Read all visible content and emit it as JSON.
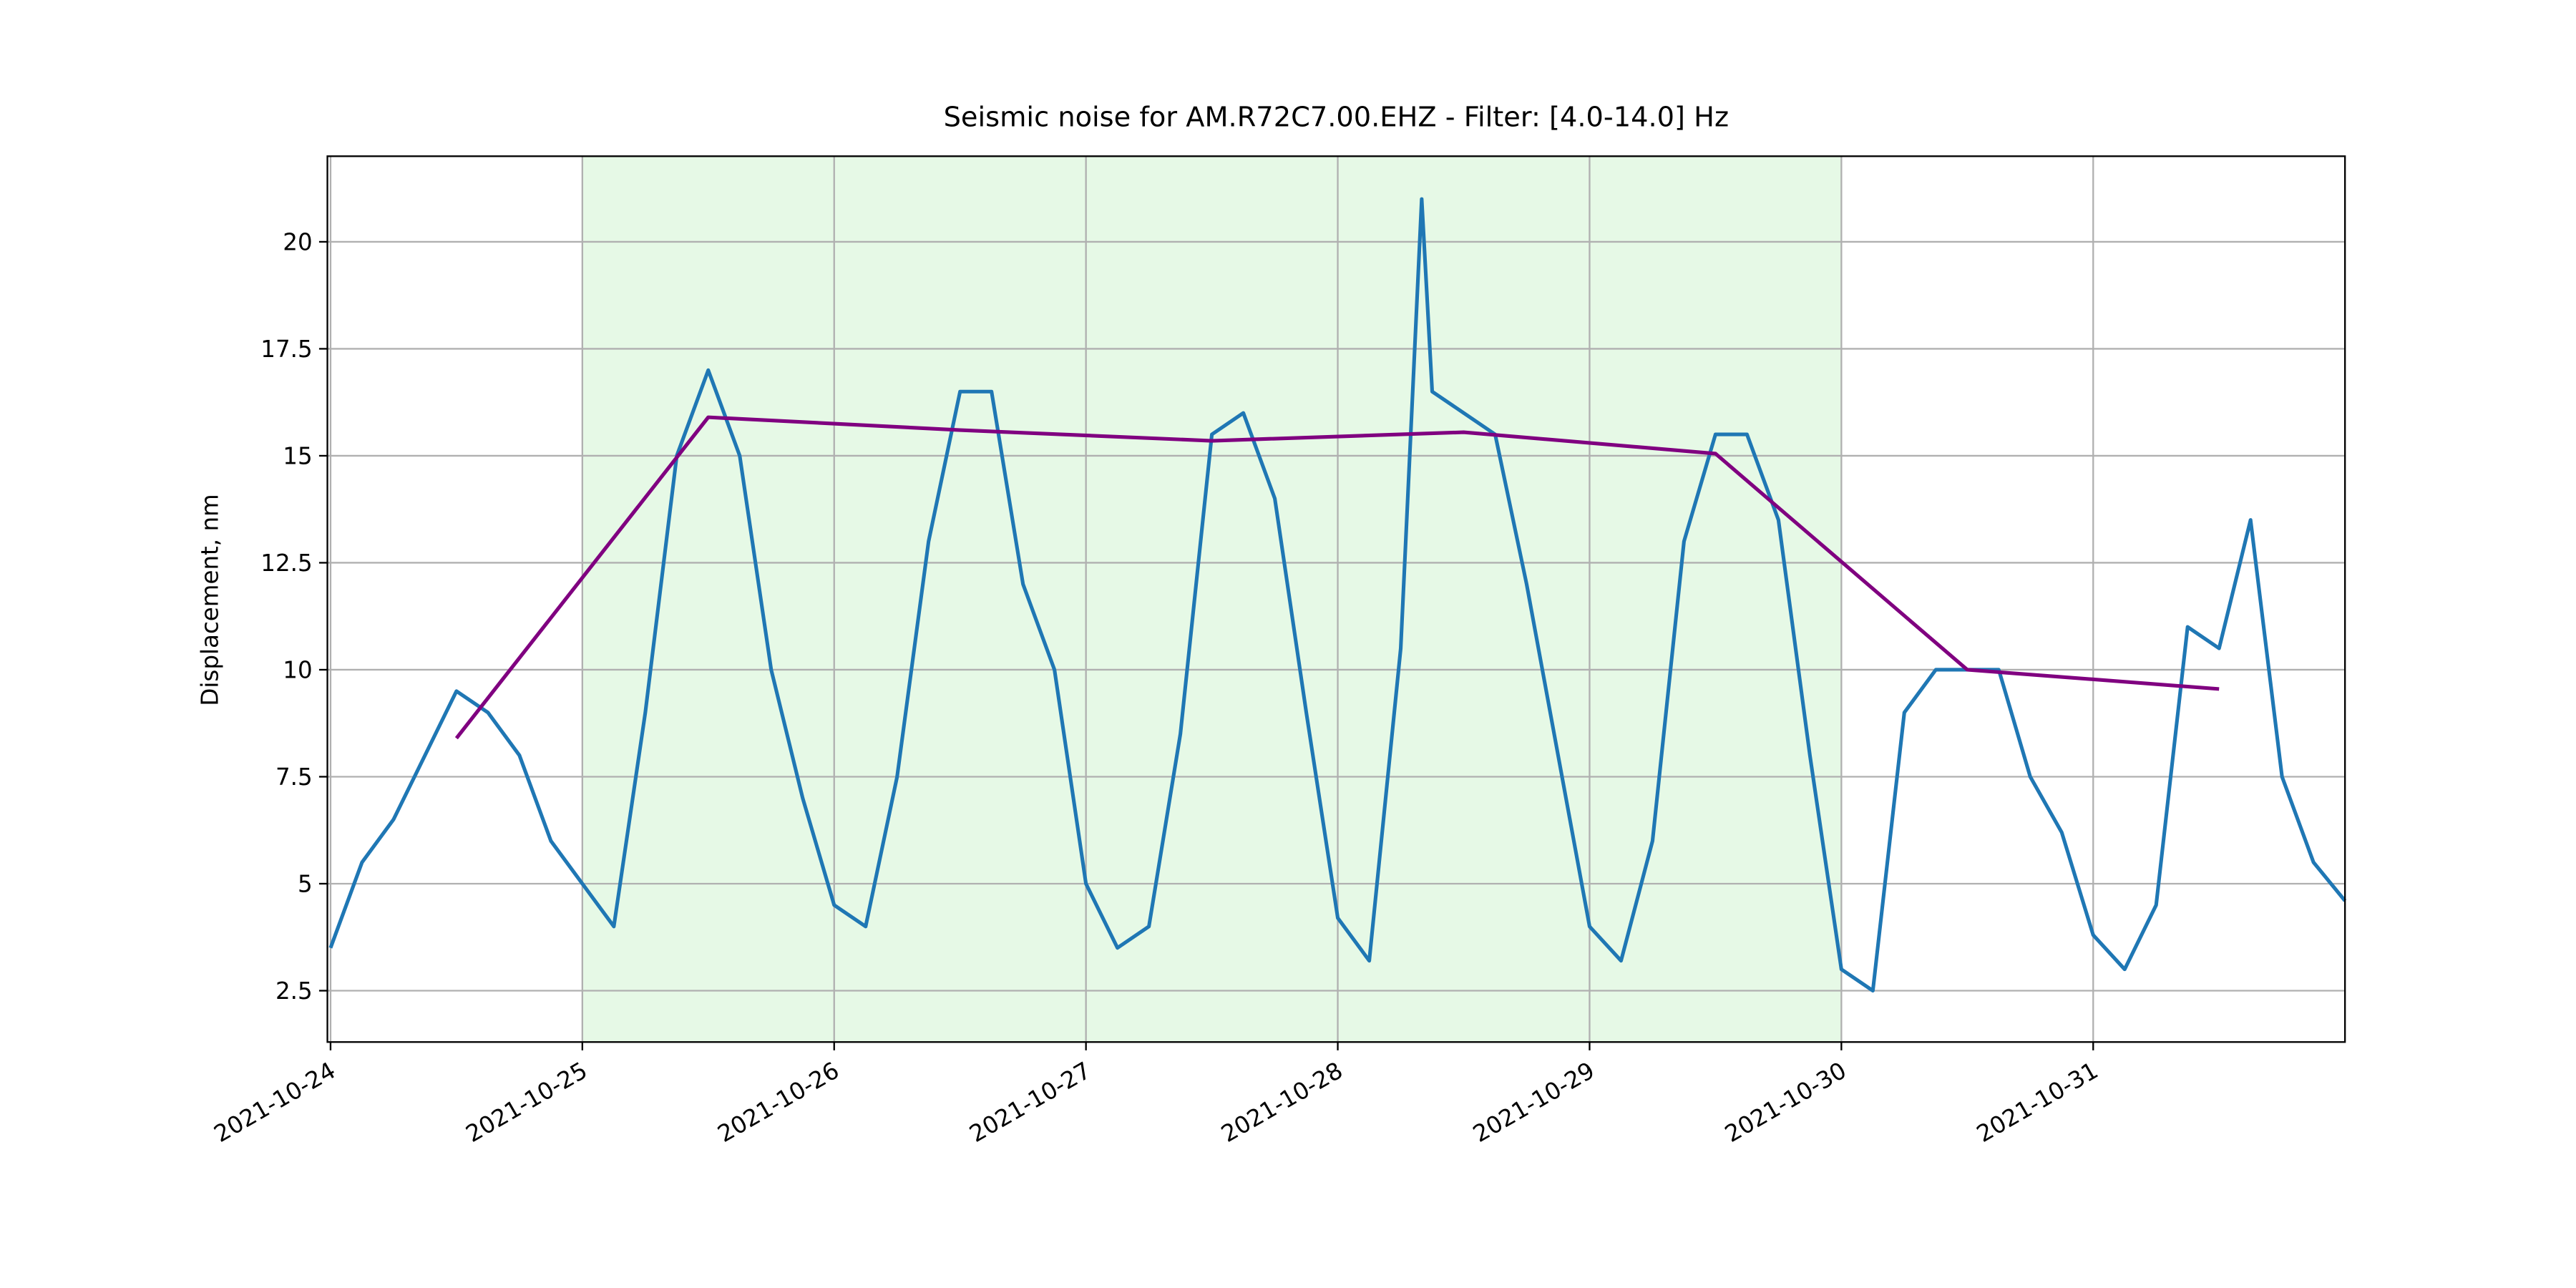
{
  "chart_data": {
    "type": "line",
    "title": "Seismic noise for AM.R72C7.00.EHZ - Filter: [4.0-14.0] Hz",
    "ylabel": "Displacement, nm",
    "xlim": [
      "2021-10-23 23:42",
      "2021-11-01 00:00"
    ],
    "xticks": [
      "2021-10-24",
      "2021-10-25",
      "2021-10-26",
      "2021-10-27",
      "2021-10-28",
      "2021-10-29",
      "2021-10-30",
      "2021-10-31"
    ],
    "ylim": [
      1.3,
      22
    ],
    "yticks": [
      2.5,
      5,
      7.5,
      10,
      12.5,
      15,
      17.5,
      20
    ],
    "grid": true,
    "shaded_span": {
      "x": [
        "2021-10-25",
        "2021-10-30"
      ],
      "color": "#e6f9e6"
    },
    "series": [
      {
        "color": "#1f77b4",
        "x": [
          "2021-10-24 00:00",
          "2021-10-24 03:00",
          "2021-10-24 06:00",
          "2021-10-24 09:00",
          "2021-10-24 12:00",
          "2021-10-24 15:00",
          "2021-10-24 18:00",
          "2021-10-24 21:00",
          "2021-10-25 00:00",
          "2021-10-25 03:00",
          "2021-10-25 06:00",
          "2021-10-25 09:00",
          "2021-10-25 12:00",
          "2021-10-25 15:00",
          "2021-10-25 18:00",
          "2021-10-25 21:00",
          "2021-10-26 00:00",
          "2021-10-26 03:00",
          "2021-10-26 06:00",
          "2021-10-26 09:00",
          "2021-10-26 12:00",
          "2021-10-26 15:00",
          "2021-10-26 18:00",
          "2021-10-26 21:00",
          "2021-10-27 00:00",
          "2021-10-27 03:00",
          "2021-10-27 06:00",
          "2021-10-27 09:00",
          "2021-10-27 12:00",
          "2021-10-27 15:00",
          "2021-10-27 18:00",
          "2021-10-27 21:00",
          "2021-10-28 00:00",
          "2021-10-28 03:00",
          "2021-10-28 06:00",
          "2021-10-28 08:00",
          "2021-10-28 09:00",
          "2021-10-28 12:00",
          "2021-10-28 15:00",
          "2021-10-28 18:00",
          "2021-10-28 21:00",
          "2021-10-29 00:00",
          "2021-10-29 03:00",
          "2021-10-29 06:00",
          "2021-10-29 09:00",
          "2021-10-29 12:00",
          "2021-10-29 15:00",
          "2021-10-29 18:00",
          "2021-10-29 21:00",
          "2021-10-30 00:00",
          "2021-10-30 03:00",
          "2021-10-30 06:00",
          "2021-10-30 09:00",
          "2021-10-30 12:00",
          "2021-10-30 15:00",
          "2021-10-30 18:00",
          "2021-10-30 21:00",
          "2021-10-31 00:00",
          "2021-10-31 03:00",
          "2021-10-31 06:00",
          "2021-10-31 09:00",
          "2021-10-31 12:00",
          "2021-10-31 15:00",
          "2021-10-31 18:00",
          "2021-10-31 21:00",
          "2021-11-01 00:00"
        ],
        "values": [
          3.5,
          5.5,
          6.5,
          8.0,
          9.5,
          9.0,
          8.0,
          6.0,
          5.0,
          4.0,
          9.0,
          15,
          17,
          15,
          10,
          7,
          4.5,
          4.0,
          7.5,
          13,
          16.5,
          16.5,
          12,
          10,
          5,
          3.5,
          4,
          8.5,
          15.5,
          16,
          14,
          9,
          4.2,
          3.2,
          10.5,
          21,
          16.5,
          16,
          15.5,
          12,
          8,
          4,
          3.2,
          6,
          13,
          15.5,
          15.5,
          13.5,
          8,
          3,
          2.5,
          9,
          10,
          10,
          10,
          7.5,
          6.2,
          3.8,
          3.0,
          4.5,
          11,
          10.5,
          13.5,
          7.5,
          5.5,
          4.6
        ]
      },
      {
        "color": "#800080",
        "x": [
          "2021-10-24 12:00",
          "2021-10-25 12:00",
          "2021-10-26 12:00",
          "2021-10-27 12:00",
          "2021-10-28 12:00",
          "2021-10-29 12:00",
          "2021-10-30 12:00",
          "2021-10-31 12:00"
        ],
        "values": [
          8.4,
          15.9,
          15.6,
          15.35,
          15.55,
          15.05,
          10.0,
          9.55
        ]
      }
    ]
  }
}
